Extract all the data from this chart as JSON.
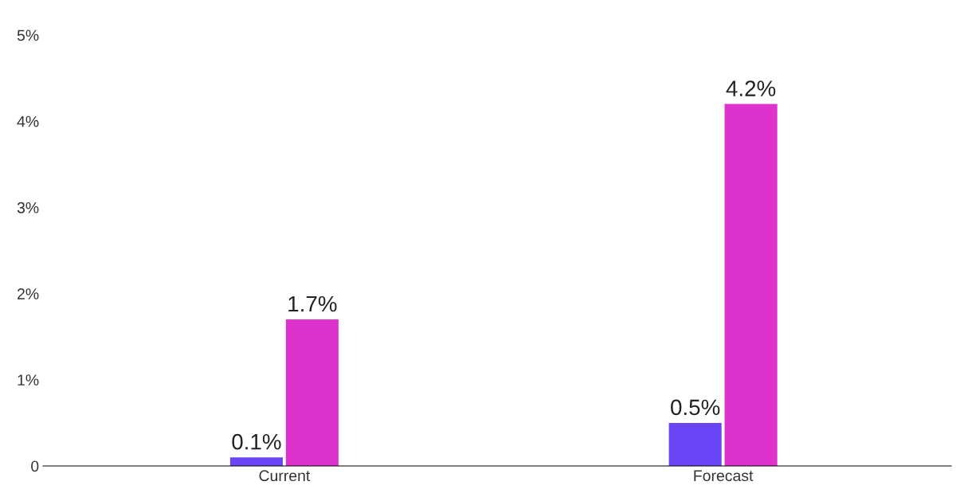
{
  "chart_data": {
    "type": "bar",
    "categories": [
      "Current",
      "Forecast"
    ],
    "series": [
      {
        "color": "#6a45f5",
        "values": [
          0.1,
          0.5
        ],
        "value_labels": [
          "0.1%",
          "0.5%"
        ]
      },
      {
        "color": "#dd33cc",
        "values": [
          1.7,
          4.2
        ],
        "value_labels": [
          "1.7%",
          "4.2%"
        ]
      }
    ],
    "ylim": [
      0,
      5
    ],
    "yticks": [
      0,
      {
        "value": 1,
        "label": "1%"
      },
      {
        "value": 2,
        "label": "2%"
      },
      {
        "value": 3,
        "label": "3%"
      },
      {
        "value": 4,
        "label": "4%"
      },
      {
        "value": 5,
        "label": "5%"
      }
    ],
    "grid": false,
    "legend": false
  }
}
